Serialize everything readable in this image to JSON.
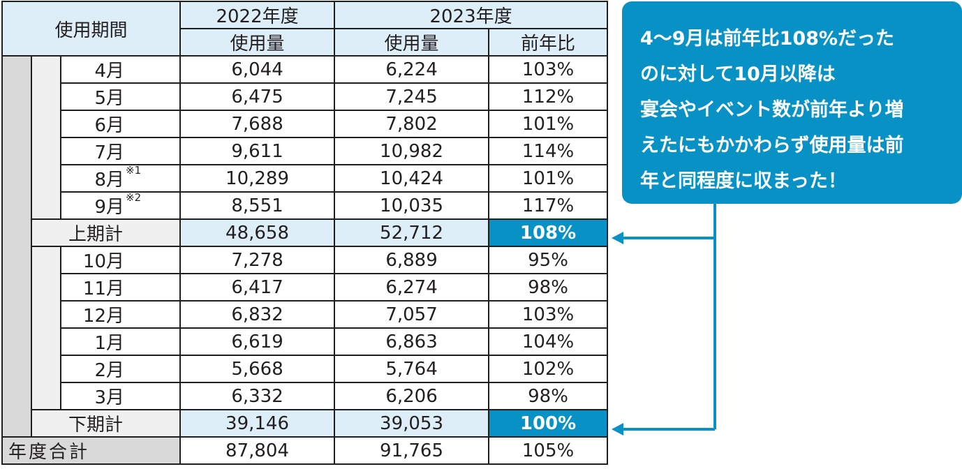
{
  "header": {
    "period_label": "使用期間",
    "year2022": "2022年度",
    "year2023": "2023年度",
    "usage_2022": "使用量",
    "usage_2023": "使用量",
    "ratio": "前年比"
  },
  "first_half": [
    {
      "month": "4月",
      "note": "",
      "y2022": "6,044",
      "y2023": "6,224",
      "ratio": "103%"
    },
    {
      "month": "5月",
      "note": "",
      "y2022": "6,475",
      "y2023": "7,245",
      "ratio": "112%"
    },
    {
      "month": "6月",
      "note": "",
      "y2022": "7,688",
      "y2023": "7,802",
      "ratio": "101%"
    },
    {
      "month": "7月",
      "note": "",
      "y2022": "9,611",
      "y2023": "10,982",
      "ratio": "114%"
    },
    {
      "month": "8月",
      "note": "※1",
      "y2022": "10,289",
      "y2023": "10,424",
      "ratio": "101%"
    },
    {
      "month": "9月",
      "note": "※2",
      "y2022": "8,551",
      "y2023": "10,035",
      "ratio": "117%"
    }
  ],
  "first_half_total": {
    "label": "上期計",
    "y2022": "48,658",
    "y2023": "52,712",
    "ratio": "108%"
  },
  "second_half": [
    {
      "month": "10月",
      "y2022": "7,278",
      "y2023": "6,889",
      "ratio": "95%"
    },
    {
      "month": "11月",
      "y2022": "6,417",
      "y2023": "6,274",
      "ratio": "98%"
    },
    {
      "month": "12月",
      "y2022": "6,832",
      "y2023": "7,057",
      "ratio": "103%"
    },
    {
      "month": "1月",
      "y2022": "6,619",
      "y2023": "6,863",
      "ratio": "104%"
    },
    {
      "month": "2月",
      "y2022": "5,668",
      "y2023": "5,764",
      "ratio": "102%"
    },
    {
      "month": "3月",
      "y2022": "6,332",
      "y2023": "6,206",
      "ratio": "98%"
    }
  ],
  "second_half_total": {
    "label": "下期計",
    "y2022": "39,146",
    "y2023": "39,053",
    "ratio": "100%"
  },
  "year_total": {
    "label": "年度合計",
    "y2022": "87,804",
    "y2023": "91,765",
    "ratio": "105%"
  },
  "callout": {
    "lines": [
      "4～9月は前年比108%だった",
      "のに対して10月以降は",
      "宴会やイベント数が前年より増",
      "えたにもかかわらず使用量は前",
      "年と同程度に収まった！"
    ]
  },
  "colors": {
    "accent": "#0891c4",
    "header_bg": "#ddeef9",
    "side_gray": "#d9d9d9",
    "side_light": "#f0f0f0"
  }
}
